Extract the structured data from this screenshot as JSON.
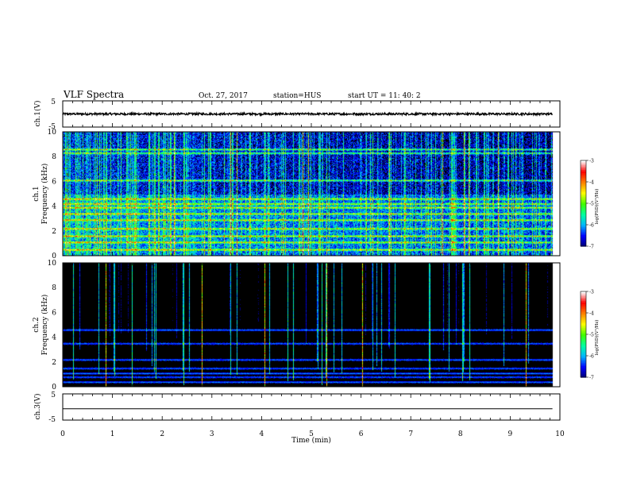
{
  "header": {
    "title": "VLF Spectra",
    "date": "Oct. 27, 2017",
    "station": "station=HUS",
    "start_ut": "start  UT =   11: 40: 2"
  },
  "chart_data": [
    {
      "id": "ch1_waveform",
      "type": "line",
      "ylabel": "ch.1(V)",
      "ylim": [
        -5,
        5
      ],
      "yticks": [
        "5",
        "-5"
      ],
      "xlim": [
        0,
        10
      ],
      "series": [
        {
          "y_mean": 0,
          "y_amplitude": 0.4,
          "x_end": 9.85
        }
      ],
      "trace_color": "#000000"
    },
    {
      "id": "ch1_spectrogram",
      "type": "heatmap",
      "ylabel": "ch.1\nFrequency (kHz)",
      "ylim": [
        0,
        10
      ],
      "yticks": [
        "0",
        "2",
        "4",
        "6",
        "8",
        "10"
      ],
      "xlim": [
        0,
        10
      ],
      "data_x_end": 9.85,
      "colorbar": {
        "label": "log(PSD)(V²/Hz)",
        "range": [
          -7,
          -3
        ],
        "ticks": [
          "-3",
          "-4",
          "-5",
          "-6",
          "-7"
        ]
      },
      "colormap": [
        "#000070",
        "#0000ff",
        "#00b4ff",
        "#00ffa0",
        "#40ff00",
        "#ffff00",
        "#ff8000",
        "#ff0000",
        "#ffffff"
      ],
      "background_level": -6.5,
      "bands_khz": [
        0.5,
        1.1,
        1.6,
        2.2,
        2.9,
        3.4,
        3.9,
        4.2,
        4.6,
        6.1,
        8.3,
        8.6
      ],
      "impulse_activity": "dense"
    },
    {
      "id": "ch2_spectrogram",
      "type": "heatmap",
      "ylabel": "ch.2\nFrequency (kHz)",
      "ylim": [
        0,
        10
      ],
      "yticks": [
        "0",
        "2",
        "4",
        "6",
        "8",
        "10"
      ],
      "xlim": [
        0,
        10
      ],
      "data_x_end": 9.85,
      "colorbar": {
        "label": "log(PSD)(V²/Hz)",
        "range": [
          -7,
          -3
        ],
        "ticks": [
          "-3",
          "-4",
          "-5",
          "-6",
          "-7"
        ]
      },
      "colormap": [
        "#000070",
        "#0000ff",
        "#00b4ff",
        "#00ffa0",
        "#40ff00",
        "#ffff00",
        "#ff8000",
        "#ff0000",
        "#ffffff"
      ],
      "background_level": -7.3,
      "bands_khz": [
        0.4,
        0.8,
        1.1,
        1.5,
        2.2,
        3.5,
        4.6
      ],
      "impulse_activity": "sparse"
    },
    {
      "id": "ch3_waveform",
      "type": "line",
      "ylabel": "ch.3(V)",
      "ylim": [
        -5,
        5
      ],
      "yticks": [
        "5",
        "-5"
      ],
      "xlim": [
        0,
        10
      ],
      "series": [
        {
          "y_mean": -0.7,
          "y_amplitude": 0,
          "x_end": 9.85
        }
      ],
      "trace_color": "#000000"
    }
  ],
  "x_axis": {
    "label": "Time (min)",
    "ticks": [
      "0",
      "1",
      "2",
      "3",
      "4",
      "5",
      "6",
      "7",
      "8",
      "9",
      "10"
    ]
  }
}
